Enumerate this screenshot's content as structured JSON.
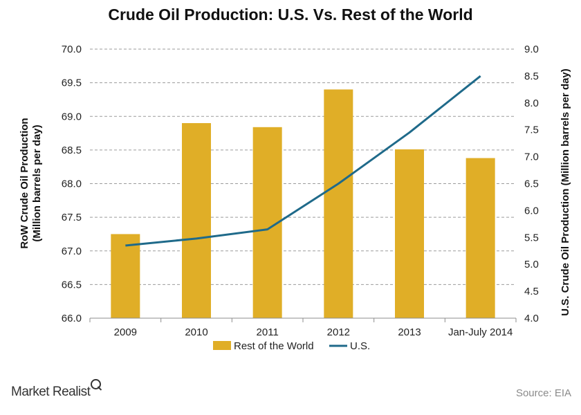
{
  "chart_data": {
    "type": "bar",
    "title": "Crude Oil Production: U.S. Vs. Rest of the World",
    "categories": [
      "2009",
      "2010",
      "2011",
      "2012",
      "2013",
      "Jan-July 2014"
    ],
    "series": [
      {
        "name": "Rest of the World",
        "type": "bar",
        "axis": "left",
        "values": [
          67.25,
          68.9,
          68.84,
          69.4,
          68.51,
          68.38
        ]
      },
      {
        "name": "U.S.",
        "type": "line",
        "axis": "right",
        "values": [
          5.35,
          5.48,
          5.65,
          6.5,
          7.45,
          8.5
        ]
      }
    ],
    "ylabel_left": [
      "RoW Crude Oil Production",
      "(Million barrels per day)"
    ],
    "ylabel_right": [
      "U.S. Crude Oil Production (Million barrels per day)"
    ],
    "ylim_left": [
      66.0,
      70.0
    ],
    "yticks_left": [
      "66.0",
      "66.5",
      "67.0",
      "67.5",
      "68.0",
      "68.5",
      "69.0",
      "69.5",
      "70.0"
    ],
    "ylim_right": [
      4.0,
      9.0
    ],
    "yticks_right": [
      "4.0",
      "4.5",
      "5.0",
      "5.5",
      "6.0",
      "6.5",
      "7.0",
      "7.5",
      "8.0",
      "8.5",
      "9.0"
    ],
    "grid": true,
    "legend": "bottom-center",
    "colors": {
      "bar": "#E0AE27",
      "line": "#1F6A8A",
      "grid": "#9a9a9a",
      "axis": "#8c8c8c"
    }
  },
  "footer": {
    "brand": "Market Realist",
    "source": "Source: EIA"
  }
}
